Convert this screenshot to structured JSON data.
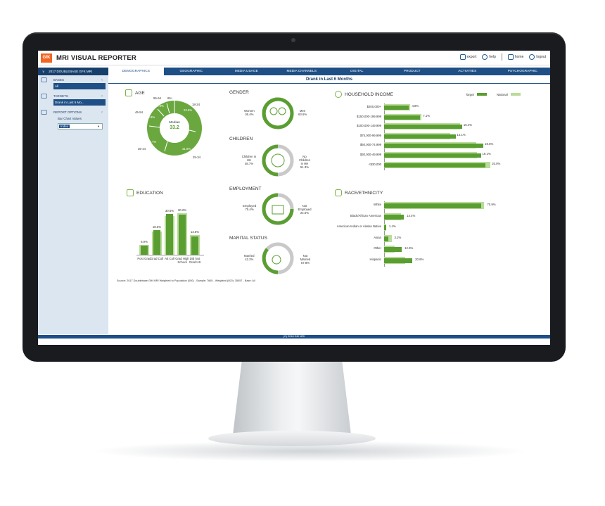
{
  "app": {
    "logo": "GfK",
    "title": "MRI VISUAL REPORTER"
  },
  "toplinks": {
    "export": "export",
    "help": "help",
    "home": "home",
    "logout": "logout"
  },
  "nav": {
    "database": "2017 DOUBLEBASE GFK MRI",
    "tabs": [
      "DEMOGRAPHICS",
      "GEOGRAPHIC",
      "MEDIA USAGE",
      "MEDIA CHANNELS",
      "DIGITAL",
      "PRODUCT",
      "ACTIVITIES",
      "PSYCHOGRAPHIC"
    ],
    "active_tab": "DEMOGRAPHICS"
  },
  "sidebar": {
    "bases_label": "BASES",
    "bases_value": "All",
    "targets_label": "TARGETS",
    "targets_value": "Drank in Last 6 Mo...",
    "report_options_label": "REPORT OPTIONS",
    "bar_chart_values_label": "Bar Chart Values",
    "bar_chart_values_selected": "Index"
  },
  "main": {
    "header": "Drank in Last 6 Months"
  },
  "age": {
    "title": "AGE",
    "center_label": "Median",
    "center_value": "33.2",
    "segments": [
      {
        "label": "18-24",
        "value": "23.9%"
      },
      {
        "label": "25-34",
        "value": "31.6%"
      },
      {
        "label": "35-44",
        "value": "19.7%"
      },
      {
        "label": "45-54",
        "value": "13.9%"
      },
      {
        "label": "55-64",
        "value": "7.9%"
      },
      {
        "label": "65+",
        "value": ""
      }
    ]
  },
  "gender": {
    "title": "GENDER",
    "women_label": "Women",
    "women_value": "36.4%",
    "men_label": "Men",
    "men_value": "63.6%"
  },
  "children": {
    "title": "CHILDREN",
    "left_label": "Children in HH",
    "left_value": "48.7%",
    "right_label": "No Children in HH",
    "right_value": "51.3%"
  },
  "employment": {
    "title": "EMPLOYMENT",
    "left_label": "Employed",
    "left_value": "75.4%",
    "right_label": "Not Employed",
    "right_value": "24.6%"
  },
  "marital": {
    "title": "MARITAL STATUS",
    "left_label": "Married",
    "left_value": "42.2%",
    "right_label": "Not Married",
    "right_value": "57.8%"
  },
  "income": {
    "title": "HOUSEHOLD INCOME",
    "legend": {
      "target": "Target",
      "national": "National"
    },
    "rows": [
      {
        "label": "$200,000+",
        "target": 4.8,
        "national": 5.2,
        "value_text": "4.8%"
      },
      {
        "label": "$150,000-199,999",
        "target": 7.1,
        "national": 7.4,
        "value_text": "7.1%"
      },
      {
        "label": "$100,000-149,999",
        "target": 15.4,
        "national": 15.0,
        "value_text": "15.4%"
      },
      {
        "label": "$75,000-99,999",
        "target": 14.1,
        "national": 13.0,
        "value_text": "14.1%"
      },
      {
        "label": "$50,000-74,999",
        "target": 19.6,
        "national": 18.2,
        "value_text": "19.6%"
      },
      {
        "label": "$30,000-49,999",
        "target": 19.1,
        "national": 18.4,
        "value_text": "19.1%"
      },
      {
        "label": "<$30,000",
        "target": 20.0,
        "national": 21.0,
        "value_text": "20.0%"
      }
    ]
  },
  "education": {
    "title": "EDUCATION",
    "bars": [
      {
        "label": "Post Grad",
        "target": 6.9,
        "national": 7.6,
        "value_text": "6.9%"
      },
      {
        "label": "Grad Coll",
        "target": 18.6,
        "national": 17.5,
        "value_text": "18.6%"
      },
      {
        "label": "Att Coll",
        "target": 30.6,
        "national": 29.2,
        "value_text": "30.6%"
      },
      {
        "label": "Grad High School",
        "target": 30.2,
        "national": 31.0,
        "value_text": "30.2%"
      },
      {
        "label": "Did Not Grad HS",
        "target": 13.5,
        "national": 14.6,
        "value_text": "13.5%"
      }
    ]
  },
  "race": {
    "title": "RACE/ETHNICITY",
    "rows": [
      {
        "label": "White",
        "target": 70.9,
        "national": 73.0,
        "value_text": "70.9%"
      },
      {
        "label": "Black/African American",
        "target": 14.4,
        "national": 12.5,
        "value_text": "14.4%"
      },
      {
        "label": "American Indian or Alaska Native",
        "target": 1.4,
        "national": 1.5,
        "value_text": "1.4%"
      },
      {
        "label": "Asian",
        "target": 3.2,
        "national": 5.4,
        "value_text": "3.2%"
      },
      {
        "label": "Other",
        "target": 12.9,
        "national": 7.6,
        "value_text": "12.9%"
      },
      {
        "label": "Hispanic",
        "target": 20.6,
        "national": 15.5,
        "value_text": "20.6%"
      }
    ]
  },
  "source": "Source: 2017 Doublebase GfK MRI Weighted to Population (000) - Sample: 7665 - Weighted (000): 35557 - Base: All",
  "footer": "(C) 2018 GfK MRI",
  "colors": {
    "target": "#5a9e32",
    "national": "#b9dc99",
    "navy": "#1e4f86"
  }
}
